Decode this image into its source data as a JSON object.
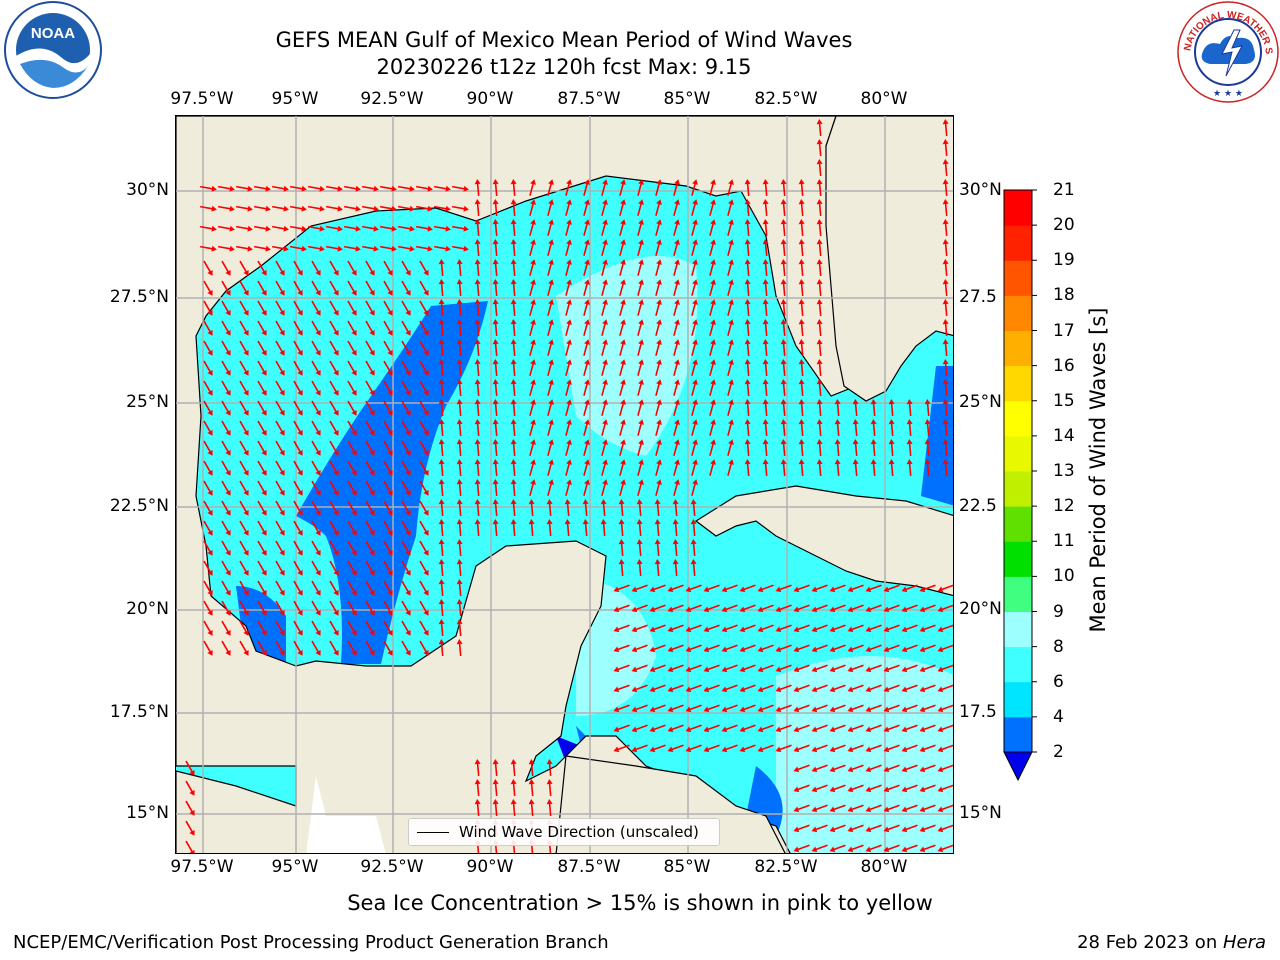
{
  "header": {
    "title_line1": "GEFS MEAN Gulf of Mexico Mean Period of Wind Waves",
    "title_line2": "20230226 t12z 120h fcst   Max: 9.15"
  },
  "logos": {
    "left_name": "noaa-logo",
    "left_text": "NOAA",
    "right_name": "nws-logo",
    "right_text": "NATIONAL WEATHER SERVICE"
  },
  "axes": {
    "top_lon_labels": [
      "97.5°W",
      "95°W",
      "92.5°W",
      "90°W",
      "87.5°W",
      "85°W",
      "82.5°W",
      "80°W"
    ],
    "bottom_lon_labels": [
      "97.5°W",
      "95°W",
      "92.5°W",
      "90°W",
      "87.5°W",
      "85°W",
      "82.5°W",
      "80°W"
    ],
    "left_lat_labels": [
      "30°N",
      "27.5°N",
      "25°N",
      "22.5°N",
      "20°N",
      "17.5°N",
      "15°N"
    ],
    "right_lat_labels": [
      "30°N",
      "27.5",
      "25°N",
      "22.5",
      "20°N",
      "17.5",
      "15°N"
    ]
  },
  "legend": {
    "label": "Wind Wave Direction (unscaled)"
  },
  "colorbar": {
    "label": "Mean Period of Wind Waves [s]",
    "ticks": [
      "2",
      "4",
      "6",
      "8",
      "9",
      "10",
      "11",
      "12",
      "13",
      "14",
      "15",
      "16",
      "17",
      "18",
      "19",
      "20",
      "21"
    ],
    "colors": [
      "#0000ee",
      "#0070ff",
      "#00e5ff",
      "#40ffff",
      "#9effff",
      "#40ff80",
      "#00e000",
      "#60e000",
      "#c0f000",
      "#e8f800",
      "#ffff00",
      "#ffd800",
      "#ffaf00",
      "#ff8800",
      "#ff5500",
      "#ff2200",
      "#ff0000"
    ],
    "extend": "min"
  },
  "notes": {
    "sea_ice": "Sea Ice Concentration > 15% is shown in pink to yellow"
  },
  "footer": {
    "left": "NCEP/EMC/Verification Post Processing Product Generation Branch",
    "right_prefix": "28 Feb 2023 on ",
    "right_italic": "Hera"
  },
  "map_colors": {
    "land": "#efecdc",
    "ocean_light": "#40ffff",
    "ocean_lighter": "#9effff",
    "ocean_mid": "#00e5ff",
    "ocean_deep": "#0070ff",
    "ocean_deepest": "#0000ee",
    "arrow": "#ff0000",
    "grid": "#b0b0b0"
  }
}
